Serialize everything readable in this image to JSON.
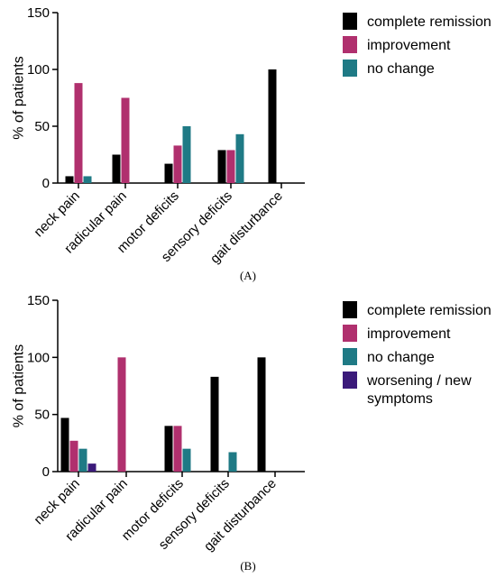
{
  "chart_data": [
    {
      "type": "bar",
      "panel_label": "(A)",
      "ylabel": "% of patients",
      "xlabel": "",
      "ylim": [
        0,
        150
      ],
      "yticks": [
        0,
        50,
        100,
        150
      ],
      "categories": [
        "neck pain",
        "radicular pain",
        "motor deficits",
        "sensory deficits",
        "gait disturbance"
      ],
      "series": [
        {
          "name": "complete remission",
          "color": "#000000",
          "values": [
            6,
            25,
            17,
            29,
            100
          ]
        },
        {
          "name": "improvement",
          "color": "#b0306e",
          "values": [
            88,
            75,
            33,
            29,
            0
          ]
        },
        {
          "name": "no change",
          "color": "#1f7a85",
          "values": [
            6,
            0,
            50,
            43,
            0
          ]
        }
      ],
      "legend_position": "right"
    },
    {
      "type": "bar",
      "panel_label": "(B)",
      "ylabel": "% of patients",
      "xlabel": "",
      "ylim": [
        0,
        150
      ],
      "yticks": [
        0,
        50,
        100,
        150
      ],
      "categories": [
        "neck pain",
        "radicular pain",
        "motor deficits",
        "sensory deficits",
        "gait disturbance"
      ],
      "series": [
        {
          "name": "complete remission",
          "color": "#000000",
          "values": [
            47,
            0,
            40,
            83,
            100
          ]
        },
        {
          "name": "improvement",
          "color": "#b0306e",
          "values": [
            27,
            100,
            40,
            0,
            0
          ]
        },
        {
          "name": "no change",
          "color": "#1f7a85",
          "values": [
            20,
            0,
            20,
            17,
            0
          ]
        },
        {
          "name": "worsening / new symptoms",
          "color": "#3b1a7a",
          "values": [
            7,
            0,
            0,
            0,
            0
          ]
        }
      ],
      "legend_position": "right"
    }
  ]
}
